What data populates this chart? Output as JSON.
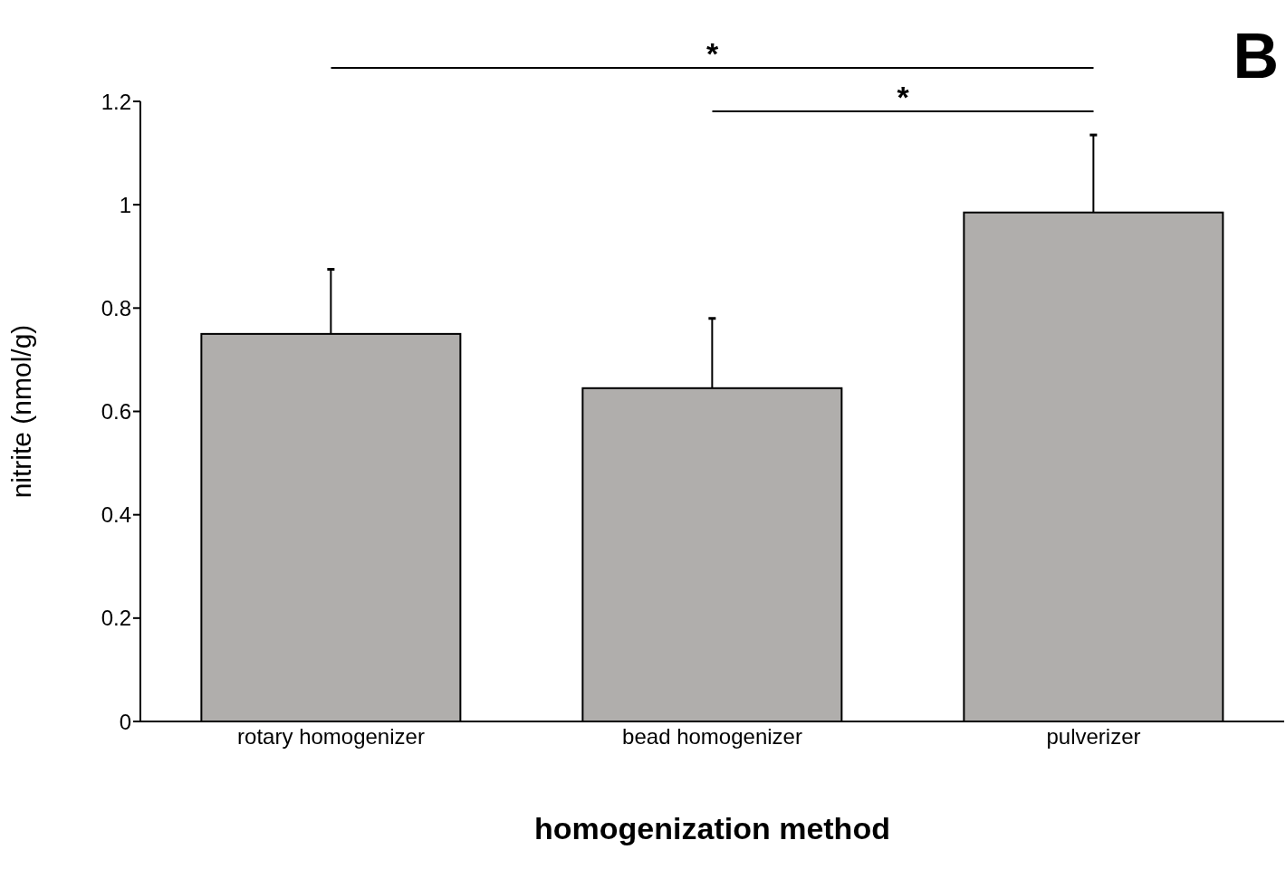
{
  "chart_data": {
    "type": "bar",
    "xlabel": "homogenization method",
    "ylabel": "nitrite (nmol/g)",
    "categories": [
      "rotary homogenizer",
      "bead homogenizer",
      "pulverizer"
    ],
    "values": [
      0.75,
      0.645,
      0.985
    ],
    "errors": [
      [
        0.75,
        0.875
      ],
      [
        0.645,
        0.78
      ],
      [
        0.985,
        1.135
      ]
    ],
    "color": "#b0aeac",
    "ylim": [
      0,
      1.2
    ],
    "yticks": [
      0,
      0.2,
      0.4,
      0.6,
      0.8,
      1,
      1.2
    ],
    "grid": false,
    "annotations": [
      "*",
      "*",
      "B"
    ]
  }
}
